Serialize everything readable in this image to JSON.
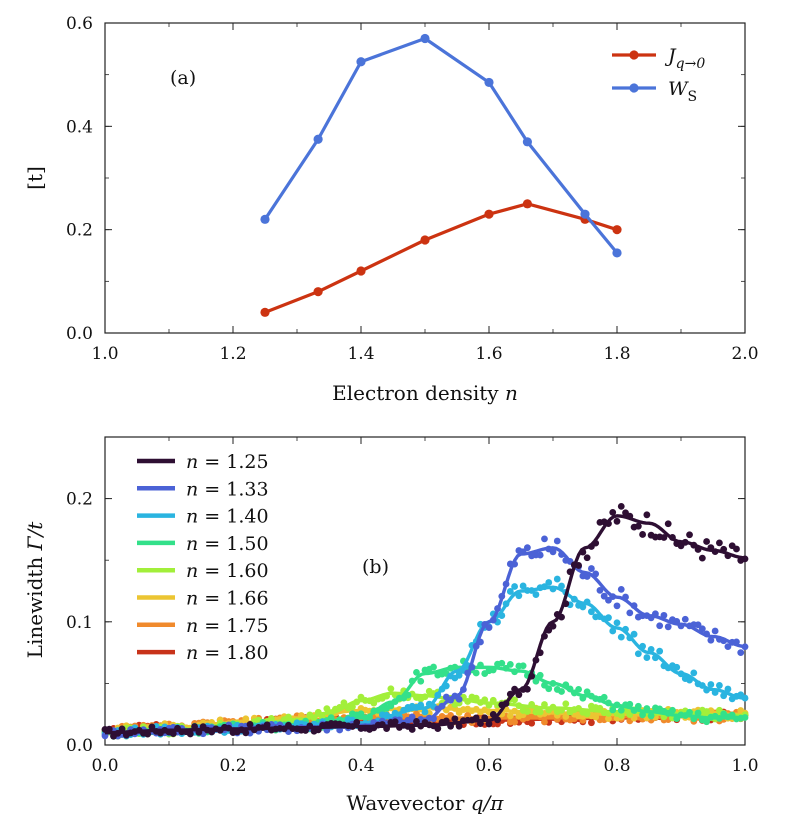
{
  "chart_data": [
    {
      "type": "line",
      "panel_label": "(a)",
      "xlabel": "Electron density n",
      "ylabel": "[t]",
      "xlim": [
        1.0,
        2.0
      ],
      "ylim": [
        0.0,
        0.6
      ],
      "xticks": [
        "1.0",
        "1.2",
        "1.4",
        "1.6",
        "1.8",
        "2.0"
      ],
      "yticks": [
        "0.0",
        "0.2",
        "0.4",
        "0.6"
      ],
      "legend_position": "top-right",
      "series": [
        {
          "name": "J_{q→0}",
          "color": "#cc3311",
          "x": [
            1.25,
            1.333,
            1.4,
            1.5,
            1.6,
            1.66,
            1.75,
            1.8
          ],
          "y": [
            0.04,
            0.08,
            0.12,
            0.18,
            0.23,
            0.25,
            0.22,
            0.2
          ]
        },
        {
          "name": "W_S",
          "color": "#4b74d9",
          "x": [
            1.25,
            1.333,
            1.4,
            1.5,
            1.6,
            1.66,
            1.75,
            1.8
          ],
          "y": [
            0.22,
            0.375,
            0.525,
            0.57,
            0.485,
            0.37,
            0.23,
            0.155
          ]
        }
      ]
    },
    {
      "type": "line",
      "panel_label": "(b)",
      "xlabel": "Wavevector q/π",
      "ylabel": "Linewidth Γ/t",
      "xlim": [
        0.0,
        1.0
      ],
      "ylim": [
        0.0,
        0.25
      ],
      "xticks": [
        "0.0",
        "0.2",
        "0.4",
        "0.6",
        "0.8",
        "1.0"
      ],
      "yticks": [
        "0.0",
        "0.1",
        "0.2"
      ],
      "legend_position": "top-left",
      "series": [
        {
          "name": "n = 1.25",
          "color": "#2e0f33",
          "x": [
            0.0,
            0.1,
            0.2,
            0.3,
            0.4,
            0.5,
            0.6,
            0.65,
            0.7,
            0.75,
            0.8,
            0.85,
            0.9,
            0.95,
            1.0
          ],
          "y": [
            0.01,
            0.012,
            0.013,
            0.014,
            0.015,
            0.016,
            0.02,
            0.045,
            0.1,
            0.16,
            0.186,
            0.18,
            0.165,
            0.158,
            0.152
          ]
        },
        {
          "name": "n = 1.33",
          "color": "#4b62d6",
          "x": [
            0.0,
            0.1,
            0.2,
            0.3,
            0.4,
            0.5,
            0.55,
            0.6,
            0.65,
            0.7,
            0.75,
            0.8,
            0.85,
            0.9,
            0.95,
            1.0
          ],
          "y": [
            0.01,
            0.012,
            0.013,
            0.014,
            0.016,
            0.02,
            0.04,
            0.1,
            0.155,
            0.16,
            0.14,
            0.12,
            0.105,
            0.098,
            0.088,
            0.08
          ]
        },
        {
          "name": "n = 1.40",
          "color": "#2ab4e0",
          "x": [
            0.0,
            0.1,
            0.2,
            0.3,
            0.4,
            0.5,
            0.55,
            0.6,
            0.65,
            0.7,
            0.75,
            0.8,
            0.85,
            0.9,
            0.95,
            1.0
          ],
          "y": [
            0.01,
            0.012,
            0.013,
            0.015,
            0.018,
            0.03,
            0.06,
            0.1,
            0.125,
            0.128,
            0.115,
            0.095,
            0.075,
            0.058,
            0.045,
            0.038
          ]
        },
        {
          "name": "n = 1.50",
          "color": "#33e08a",
          "x": [
            0.0,
            0.1,
            0.2,
            0.3,
            0.4,
            0.45,
            0.5,
            0.55,
            0.6,
            0.65,
            0.7,
            0.75,
            0.8,
            0.85,
            0.9,
            0.95,
            1.0
          ],
          "y": [
            0.01,
            0.012,
            0.014,
            0.016,
            0.022,
            0.035,
            0.058,
            0.063,
            0.063,
            0.06,
            0.05,
            0.04,
            0.032,
            0.027,
            0.024,
            0.022,
            0.022
          ]
        },
        {
          "name": "n = 1.60",
          "color": "#a2ef3a",
          "x": [
            0.0,
            0.1,
            0.2,
            0.3,
            0.35,
            0.4,
            0.45,
            0.5,
            0.55,
            0.6,
            0.7,
            0.8,
            0.9,
            1.0
          ],
          "y": [
            0.01,
            0.012,
            0.016,
            0.02,
            0.026,
            0.036,
            0.042,
            0.04,
            0.037,
            0.034,
            0.03,
            0.027,
            0.025,
            0.024
          ]
        },
        {
          "name": "n = 1.66",
          "color": "#ecc532",
          "x": [
            0.0,
            0.1,
            0.2,
            0.3,
            0.4,
            0.5,
            0.6,
            0.7,
            0.8,
            0.9,
            1.0
          ],
          "y": [
            0.012,
            0.014,
            0.018,
            0.022,
            0.028,
            0.03,
            0.028,
            0.026,
            0.025,
            0.025,
            0.025
          ]
        },
        {
          "name": "n = 1.75",
          "color": "#f08a2c",
          "x": [
            0.0,
            0.1,
            0.2,
            0.3,
            0.4,
            0.5,
            0.6,
            0.7,
            0.8,
            0.9,
            1.0
          ],
          "y": [
            0.012,
            0.014,
            0.017,
            0.02,
            0.022,
            0.022,
            0.022,
            0.022,
            0.023,
            0.023,
            0.023
          ]
        },
        {
          "name": "n = 1.80",
          "color": "#c8331a",
          "x": [
            0.0,
            0.1,
            0.2,
            0.3,
            0.4,
            0.5,
            0.6,
            0.7,
            0.8,
            0.9,
            1.0
          ],
          "y": [
            0.012,
            0.014,
            0.016,
            0.019,
            0.021,
            0.02,
            0.02,
            0.021,
            0.022,
            0.023,
            0.023
          ]
        }
      ]
    }
  ]
}
